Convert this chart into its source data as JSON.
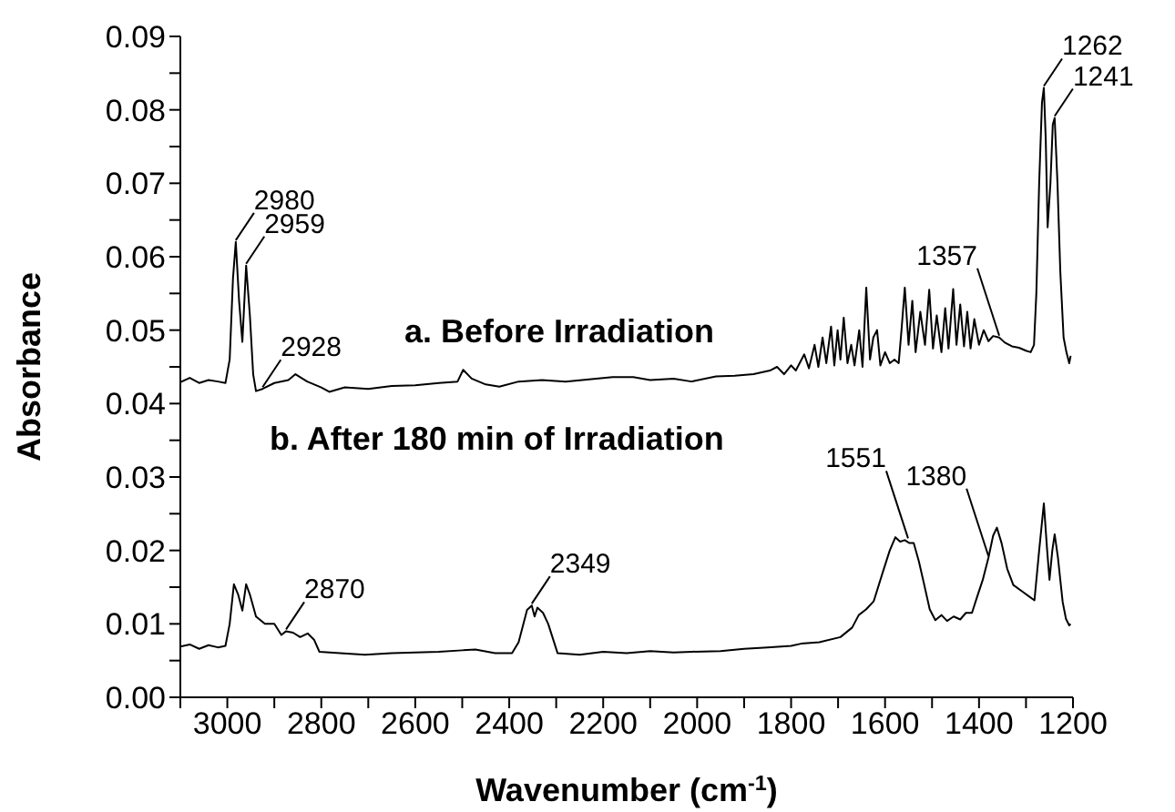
{
  "chart_data": {
    "type": "line",
    "xlabel": "Wavenumber (cm$^{-1}$)",
    "ylabel": "Absorbance",
    "xlim": [
      3100,
      1200
    ],
    "xticks": [
      {
        "value": 3100,
        "label": null
      },
      3000,
      {
        "value": 2900,
        "label": null
      },
      2800,
      {
        "value": 2700,
        "label": null
      },
      2600,
      {
        "value": 2500,
        "label": null
      },
      2400,
      {
        "value": 2300,
        "label": null
      },
      2200,
      {
        "value": 2100,
        "label": null
      },
      2000,
      {
        "value": 1900,
        "label": null
      },
      1800,
      {
        "value": 1700,
        "label": null
      },
      1600,
      {
        "value": 1500,
        "label": null
      },
      1400,
      {
        "value": 1300,
        "label": null
      },
      1200
    ],
    "ylim": [
      0,
      0.09
    ],
    "yticks": [
      {
        "value": 0,
        "label": "0.00"
      },
      {
        "value": 0.005,
        "label": null
      },
      0.01,
      {
        "value": 0.015,
        "label": null
      },
      0.02,
      {
        "value": 0.025,
        "label": null
      },
      0.03,
      {
        "value": 0.035,
        "label": null
      },
      0.04,
      {
        "value": 0.045,
        "label": null
      },
      0.05,
      {
        "value": 0.055,
        "label": null
      },
      0.06,
      {
        "value": 0.065,
        "label": null
      },
      0.07,
      {
        "value": 0.075,
        "label": null
      },
      0.08,
      {
        "value": 0.085,
        "label": null
      },
      0.09
    ],
    "marker": "none",
    "line_style": "solid",
    "series": [
      {
        "name": "a. Before Irradiation",
        "color": "#000000",
        "x": [
          3100,
          3080,
          3060,
          3040,
          3020,
          3004,
          2995,
          2988,
          2982,
          2975,
          2968,
          2960,
          2952,
          2945,
          2939,
          2925,
          2900,
          2870,
          2855,
          2830,
          2800,
          2783,
          2750,
          2700,
          2650,
          2600,
          2550,
          2510,
          2498,
          2480,
          2450,
          2421,
          2380,
          2330,
          2280,
          2230,
          2180,
          2136,
          2100,
          2050,
          2012,
          1960,
          1920,
          1880,
          1845,
          1830,
          1815,
          1800,
          1790,
          1772,
          1762,
          1750,
          1742,
          1733,
          1725,
          1715,
          1708,
          1701,
          1695,
          1688,
          1680,
          1672,
          1665,
          1655,
          1648,
          1640,
          1632,
          1625,
          1617,
          1610,
          1600,
          1590,
          1580,
          1571,
          1565,
          1558,
          1550,
          1542,
          1535,
          1525,
          1515,
          1506,
          1498,
          1490,
          1480,
          1472,
          1465,
          1455,
          1448,
          1440,
          1432,
          1425,
          1418,
          1410,
          1400,
          1390,
          1380,
          1370,
          1357,
          1345,
          1330,
          1315,
          1300,
          1290,
          1283,
          1278,
          1272,
          1266,
          1262,
          1258,
          1254,
          1248,
          1243,
          1239,
          1233,
          1227,
          1220,
          1214,
          1208,
          1205
        ],
        "values": [
          0.0429,
          0.0435,
          0.0428,
          0.0432,
          0.043,
          0.0428,
          0.046,
          0.057,
          0.062,
          0.054,
          0.0484,
          0.0588,
          0.052,
          0.044,
          0.0417,
          0.042,
          0.0428,
          0.0432,
          0.044,
          0.043,
          0.0422,
          0.0416,
          0.0422,
          0.042,
          0.0424,
          0.0425,
          0.0428,
          0.043,
          0.0446,
          0.0434,
          0.0426,
          0.0423,
          0.043,
          0.0432,
          0.043,
          0.0433,
          0.0436,
          0.0436,
          0.0432,
          0.0434,
          0.043,
          0.0437,
          0.0438,
          0.044,
          0.0445,
          0.045,
          0.044,
          0.0452,
          0.0445,
          0.0467,
          0.0448,
          0.048,
          0.045,
          0.049,
          0.0455,
          0.0505,
          0.0452,
          0.05,
          0.046,
          0.0517,
          0.0455,
          0.048,
          0.0452,
          0.05,
          0.045,
          0.0558,
          0.046,
          0.049,
          0.05,
          0.0452,
          0.047,
          0.0455,
          0.046,
          0.0455,
          0.05,
          0.0558,
          0.048,
          0.054,
          0.047,
          0.0525,
          0.048,
          0.0555,
          0.0475,
          0.052,
          0.047,
          0.053,
          0.0475,
          0.0556,
          0.048,
          0.0535,
          0.0478,
          0.0525,
          0.0475,
          0.0515,
          0.048,
          0.05,
          0.0485,
          0.0492,
          0.049,
          0.0483,
          0.0478,
          0.0476,
          0.0472,
          0.047,
          0.048,
          0.055,
          0.07,
          0.081,
          0.083,
          0.076,
          0.064,
          0.07,
          0.078,
          0.0789,
          0.07,
          0.058,
          0.049,
          0.047,
          0.0455,
          0.0465
        ]
      },
      {
        "name": "b. After 180 min of Irradiation",
        "color": "#000000",
        "x": [
          3100,
          3080,
          3060,
          3040,
          3020,
          3004,
          2995,
          2986,
          2977,
          2968,
          2960,
          2952,
          2939,
          2920,
          2900,
          2885,
          2875,
          2860,
          2845,
          2829,
          2815,
          2804,
          2760,
          2707,
          2650,
          2600,
          2550,
          2500,
          2472,
          2430,
          2394,
          2380,
          2362,
          2352,
          2346,
          2340,
          2328,
          2317,
          2297,
          2250,
          2200,
          2150,
          2100,
          2050,
          2012,
          1950,
          1900,
          1850,
          1800,
          1779,
          1740,
          1695,
          1670,
          1656,
          1640,
          1624,
          1605,
          1590,
          1578,
          1568,
          1558,
          1548,
          1539,
          1528,
          1519,
          1505,
          1493,
          1480,
          1468,
          1454,
          1440,
          1428,
          1415,
          1405,
          1392,
          1380,
          1370,
          1362,
          1352,
          1340,
          1327,
          1310,
          1295,
          1282,
          1272,
          1262,
          1255,
          1250,
          1244,
          1239,
          1232,
          1222,
          1215,
          1208,
          1205
        ],
        "values": [
          0.0069,
          0.0072,
          0.0066,
          0.0071,
          0.0068,
          0.007,
          0.01,
          0.0154,
          0.014,
          0.0118,
          0.0154,
          0.014,
          0.011,
          0.01,
          0.01,
          0.0085,
          0.009,
          0.0088,
          0.0082,
          0.0087,
          0.0078,
          0.0062,
          0.006,
          0.0058,
          0.006,
          0.0061,
          0.0062,
          0.0064,
          0.0065,
          0.006,
          0.006,
          0.0075,
          0.0119,
          0.0125,
          0.011,
          0.0122,
          0.0115,
          0.01,
          0.006,
          0.0058,
          0.0062,
          0.006,
          0.0063,
          0.0061,
          0.0062,
          0.0063,
          0.0066,
          0.0068,
          0.007,
          0.0073,
          0.0075,
          0.0082,
          0.0095,
          0.0112,
          0.012,
          0.0131,
          0.017,
          0.02,
          0.0218,
          0.0212,
          0.0214,
          0.021,
          0.021,
          0.0185,
          0.016,
          0.012,
          0.0105,
          0.0112,
          0.0104,
          0.011,
          0.0106,
          0.0115,
          0.0115,
          0.0135,
          0.016,
          0.019,
          0.022,
          0.0231,
          0.021,
          0.0175,
          0.0153,
          0.0145,
          0.0138,
          0.0132,
          0.02,
          0.0264,
          0.02,
          0.016,
          0.02,
          0.0222,
          0.019,
          0.013,
          0.0107,
          0.0098,
          0.01
        ]
      }
    ],
    "annotations": [
      {
        "text": "2980",
        "x": 2982,
        "y": 0.062
      },
      {
        "text": "2959",
        "x": 2960,
        "y": 0.0588
      },
      {
        "text": "2928",
        "x": 2925,
        "y": 0.042
      },
      {
        "text": "1357",
        "x": 1357,
        "y": 0.049
      },
      {
        "text": "1262",
        "x": 1262,
        "y": 0.083
      },
      {
        "text": "1241",
        "x": 1239,
        "y": 0.0789
      },
      {
        "text": "2870",
        "x": 2875,
        "y": 0.009
      },
      {
        "text": "2349",
        "x": 2352,
        "y": 0.0125
      },
      {
        "text": "1551",
        "x": 1551,
        "y": 0.0214
      },
      {
        "text": "1380",
        "x": 1380,
        "y": 0.019
      }
    ]
  }
}
